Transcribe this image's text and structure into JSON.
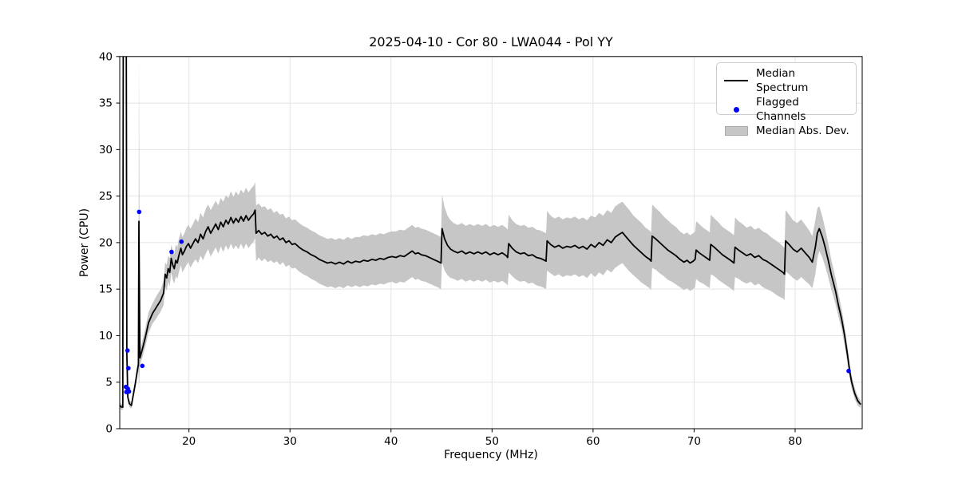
{
  "chart_data": {
    "type": "line",
    "title": "2025-04-10 - Cor 80 - LWA044 - Pol YY",
    "xlabel": "Frequency (MHz)",
    "ylabel": "Power (CPU)",
    "xlim": [
      13.15,
      86.64
    ],
    "ylim": [
      0,
      40
    ],
    "xticks": [
      20,
      30,
      40,
      50,
      60,
      70,
      80
    ],
    "yticks": [
      0,
      5,
      10,
      15,
      20,
      25,
      30,
      35,
      40
    ],
    "grid": true,
    "legend": {
      "position": "upper right",
      "entries": [
        "Median Spectrum",
        "Flagged Channels",
        "Median Abs. Dev."
      ]
    },
    "colors": {
      "median_line": "#000000",
      "flagged": "#0000ff",
      "band": "#c6c6c6",
      "grid": "#e4e4e4",
      "frame": "#000000"
    },
    "spectrum_points_format": [
      "freq_mhz",
      "median_power",
      "median_abs_dev"
    ],
    "spectrum": [
      [
        13.15,
        2.5,
        0.3
      ],
      [
        13.3,
        2.35,
        0.3
      ],
      [
        13.45,
        2.3,
        0.3
      ],
      [
        13.5,
        41,
        1
      ],
      [
        13.8,
        41,
        1
      ],
      [
        13.85,
        8,
        0.6
      ],
      [
        13.95,
        3.4,
        0.4
      ],
      [
        14.1,
        2.7,
        0.35
      ],
      [
        14.3,
        2.5,
        0.35
      ],
      [
        14.5,
        3.7,
        0.4
      ],
      [
        14.7,
        4.9,
        0.5
      ],
      [
        14.9,
        6.3,
        0.6
      ],
      [
        15.0,
        6.9,
        0.7
      ],
      [
        15.05,
        22.3,
        18
      ],
      [
        15.15,
        7.6,
        0.8
      ],
      [
        15.4,
        8.6,
        0.9
      ],
      [
        15.7,
        9.9,
        1
      ],
      [
        16.0,
        11.4,
        1.1
      ],
      [
        16.4,
        12.4,
        1.1
      ],
      [
        16.8,
        13.1,
        1.2
      ],
      [
        17.2,
        13.8,
        1.2
      ],
      [
        17.5,
        14.6,
        1.3
      ],
      [
        17.65,
        16.6,
        1.3
      ],
      [
        17.8,
        16.2,
        1.4
      ],
      [
        17.95,
        17.2,
        1.4
      ],
      [
        18.1,
        16.8,
        1.5
      ],
      [
        18.25,
        18.3,
        1.5
      ],
      [
        18.4,
        17.6,
        1.6
      ],
      [
        18.55,
        17.2,
        1.6
      ],
      [
        18.7,
        18.1,
        1.7
      ],
      [
        18.85,
        17.8,
        1.7
      ],
      [
        19.0,
        18.6,
        1.8
      ],
      [
        19.2,
        19.4,
        1.8
      ],
      [
        19.35,
        18.7,
        1.9
      ],
      [
        19.55,
        19.1,
        1.9
      ],
      [
        19.75,
        19.6,
        2
      ],
      [
        19.95,
        19.9,
        2
      ],
      [
        20.15,
        19.4,
        2.1
      ],
      [
        20.4,
        19.9,
        2.1
      ],
      [
        20.65,
        20.4,
        2.2
      ],
      [
        20.9,
        20.0,
        2.2
      ],
      [
        21.15,
        20.9,
        2.3
      ],
      [
        21.4,
        20.4,
        2.3
      ],
      [
        21.65,
        21.2,
        2.4
      ],
      [
        21.9,
        21.7,
        2.4
      ],
      [
        22.15,
        21.0,
        2.5
      ],
      [
        22.4,
        21.5,
        2.5
      ],
      [
        22.65,
        22.0,
        2.5
      ],
      [
        22.9,
        21.4,
        2.6
      ],
      [
        23.15,
        22.2,
        2.6
      ],
      [
        23.4,
        21.7,
        2.7
      ],
      [
        23.65,
        22.4,
        2.7
      ],
      [
        23.9,
        22.0,
        2.8
      ],
      [
        24.15,
        22.7,
        2.8
      ],
      [
        24.4,
        22.1,
        2.8
      ],
      [
        24.65,
        22.6,
        2.9
      ],
      [
        24.9,
        22.2,
        2.9
      ],
      [
        25.15,
        22.8,
        2.9
      ],
      [
        25.4,
        22.3,
        3
      ],
      [
        25.65,
        22.9,
        3
      ],
      [
        25.9,
        22.4,
        3
      ],
      [
        26.15,
        22.8,
        3
      ],
      [
        26.4,
        23.1,
        3
      ],
      [
        26.55,
        23.5,
        3
      ],
      [
        26.65,
        21.0,
        3
      ],
      [
        26.9,
        21.3,
        2.9
      ],
      [
        27.2,
        20.9,
        2.9
      ],
      [
        27.5,
        21.1,
        2.8
      ],
      [
        27.8,
        20.7,
        2.8
      ],
      [
        28.1,
        20.9,
        2.8
      ],
      [
        28.4,
        20.5,
        2.7
      ],
      [
        28.7,
        20.7,
        2.7
      ],
      [
        29.0,
        20.3,
        2.7
      ],
      [
        29.3,
        20.5,
        2.6
      ],
      [
        29.6,
        20.0,
        2.6
      ],
      [
        29.9,
        20.2,
        2.6
      ],
      [
        30.2,
        19.8,
        2.6
      ],
      [
        30.5,
        19.9,
        2.6
      ],
      [
        30.9,
        19.5,
        2.6
      ],
      [
        31.3,
        19.2,
        2.6
      ],
      [
        31.7,
        19.0,
        2.6
      ],
      [
        32.1,
        18.7,
        2.6
      ],
      [
        32.5,
        18.5,
        2.6
      ],
      [
        32.9,
        18.2,
        2.6
      ],
      [
        33.3,
        18.0,
        2.6
      ],
      [
        33.7,
        17.8,
        2.6
      ],
      [
        34.1,
        17.9,
        2.6
      ],
      [
        34.5,
        17.7,
        2.6
      ],
      [
        34.9,
        17.9,
        2.6
      ],
      [
        35.3,
        17.7,
        2.6
      ],
      [
        35.7,
        18.0,
        2.6
      ],
      [
        36.1,
        17.8,
        2.6
      ],
      [
        36.5,
        18.0,
        2.6
      ],
      [
        36.9,
        17.9,
        2.7
      ],
      [
        37.3,
        18.1,
        2.7
      ],
      [
        37.7,
        18.0,
        2.7
      ],
      [
        38.1,
        18.2,
        2.7
      ],
      [
        38.5,
        18.1,
        2.7
      ],
      [
        38.9,
        18.3,
        2.7
      ],
      [
        39.3,
        18.2,
        2.7
      ],
      [
        39.7,
        18.4,
        2.7
      ],
      [
        40.1,
        18.5,
        2.7
      ],
      [
        40.5,
        18.4,
        2.8
      ],
      [
        40.9,
        18.6,
        2.8
      ],
      [
        41.3,
        18.5,
        2.8
      ],
      [
        41.7,
        18.8,
        2.8
      ],
      [
        42.1,
        19.1,
        2.8
      ],
      [
        42.4,
        18.8,
        2.8
      ],
      [
        42.7,
        18.9,
        2.8
      ],
      [
        43.0,
        18.7,
        2.8
      ],
      [
        43.4,
        18.6,
        2.8
      ],
      [
        43.8,
        18.4,
        2.8
      ],
      [
        44.2,
        18.2,
        2.8
      ],
      [
        44.6,
        18.0,
        2.8
      ],
      [
        44.95,
        17.8,
        2.8
      ],
      [
        45.05,
        21.5,
        3.6
      ],
      [
        45.3,
        20.4,
        3.4
      ],
      [
        45.6,
        19.7,
        3.2
      ],
      [
        45.9,
        19.3,
        3.1
      ],
      [
        46.2,
        19.1,
        3
      ],
      [
        46.6,
        18.9,
        3
      ],
      [
        47.0,
        19.1,
        3
      ],
      [
        47.4,
        18.8,
        3
      ],
      [
        47.8,
        19.0,
        3
      ],
      [
        48.2,
        18.8,
        3
      ],
      [
        48.6,
        19.0,
        3
      ],
      [
        49.0,
        18.8,
        3
      ],
      [
        49.4,
        19.0,
        3
      ],
      [
        49.8,
        18.7,
        3
      ],
      [
        50.2,
        18.9,
        3
      ],
      [
        50.6,
        18.7,
        3
      ],
      [
        51.0,
        18.9,
        3
      ],
      [
        51.4,
        18.6,
        3
      ],
      [
        51.55,
        18.4,
        3
      ],
      [
        51.65,
        19.9,
        3.1
      ],
      [
        52.0,
        19.4,
        3
      ],
      [
        52.4,
        19.0,
        3
      ],
      [
        52.8,
        18.8,
        3
      ],
      [
        53.2,
        18.9,
        3
      ],
      [
        53.6,
        18.6,
        3
      ],
      [
        54.0,
        18.7,
        3
      ],
      [
        54.4,
        18.4,
        3
      ],
      [
        54.8,
        18.3,
        3
      ],
      [
        55.2,
        18.1,
        3
      ],
      [
        55.35,
        18.0,
        3
      ],
      [
        55.45,
        20.2,
        3.2
      ],
      [
        55.8,
        19.8,
        3.1
      ],
      [
        56.2,
        19.5,
        3.1
      ],
      [
        56.6,
        19.7,
        3.1
      ],
      [
        57.0,
        19.4,
        3.1
      ],
      [
        57.4,
        19.6,
        3.1
      ],
      [
        57.8,
        19.5,
        3.1
      ],
      [
        58.2,
        19.7,
        3.1
      ],
      [
        58.6,
        19.4,
        3.1
      ],
      [
        59.0,
        19.6,
        3.1
      ],
      [
        59.4,
        19.3,
        3.1
      ],
      [
        59.8,
        19.8,
        3.1
      ],
      [
        60.2,
        19.5,
        3.2
      ],
      [
        60.6,
        20.0,
        3.2
      ],
      [
        61.0,
        19.7,
        3.2
      ],
      [
        61.4,
        20.3,
        3.2
      ],
      [
        61.8,
        20.0,
        3.2
      ],
      [
        62.2,
        20.6,
        3.3
      ],
      [
        62.6,
        20.9,
        3.3
      ],
      [
        62.9,
        21.1,
        3.3
      ],
      [
        63.2,
        20.7,
        3.3
      ],
      [
        63.6,
        20.2,
        3.3
      ],
      [
        64.0,
        19.7,
        3.2
      ],
      [
        64.4,
        19.3,
        3.2
      ],
      [
        64.8,
        18.9,
        3.2
      ],
      [
        65.2,
        18.5,
        3.1
      ],
      [
        65.6,
        18.2,
        3.1
      ],
      [
        65.75,
        18.0,
        3.1
      ],
      [
        65.85,
        20.7,
        3.4
      ],
      [
        66.2,
        20.4,
        3.3
      ],
      [
        66.6,
        20.0,
        3.3
      ],
      [
        67.0,
        19.6,
        3.2
      ],
      [
        67.4,
        19.2,
        3.2
      ],
      [
        67.8,
        18.9,
        3.1
      ],
      [
        68.2,
        18.6,
        3.1
      ],
      [
        68.6,
        18.2,
        3
      ],
      [
        69.0,
        17.9,
        3
      ],
      [
        69.3,
        18.1,
        3
      ],
      [
        69.6,
        17.8,
        3
      ],
      [
        69.9,
        18.0,
        3
      ],
      [
        70.1,
        18.2,
        3
      ],
      [
        70.2,
        19.2,
        3.1
      ],
      [
        70.5,
        18.9,
        3.1
      ],
      [
        70.9,
        18.6,
        3
      ],
      [
        71.3,
        18.3,
        3
      ],
      [
        71.55,
        18.1,
        3
      ],
      [
        71.65,
        19.8,
        3.2
      ],
      [
        72.0,
        19.5,
        3.1
      ],
      [
        72.4,
        19.1,
        3.1
      ],
      [
        72.8,
        18.7,
        3
      ],
      [
        73.2,
        18.4,
        3
      ],
      [
        73.6,
        18.1,
        3
      ],
      [
        73.95,
        17.8,
        3
      ],
      [
        74.05,
        19.5,
        3.2
      ],
      [
        74.4,
        19.2,
        3.1
      ],
      [
        74.8,
        18.9,
        3.1
      ],
      [
        75.2,
        18.6,
        3
      ],
      [
        75.6,
        18.8,
        3
      ],
      [
        76.0,
        18.4,
        3
      ],
      [
        76.4,
        18.6,
        3
      ],
      [
        76.8,
        18.2,
        3
      ],
      [
        77.2,
        18.0,
        3
      ],
      [
        77.6,
        17.7,
        2.9
      ],
      [
        78.0,
        17.4,
        2.9
      ],
      [
        78.4,
        17.1,
        2.9
      ],
      [
        78.8,
        16.8,
        2.8
      ],
      [
        78.95,
        16.6,
        2.8
      ],
      [
        79.05,
        20.2,
        3.3
      ],
      [
        79.4,
        19.8,
        3.2
      ],
      [
        79.8,
        19.3,
        3.1
      ],
      [
        80.2,
        19.0,
        3.1
      ],
      [
        80.6,
        19.4,
        3.1
      ],
      [
        81.0,
        18.9,
        3
      ],
      [
        81.4,
        18.4,
        2.9
      ],
      [
        81.7,
        17.9,
        2.8
      ],
      [
        82.0,
        19.5,
        2.9
      ],
      [
        82.2,
        21.0,
        2.7
      ],
      [
        82.4,
        21.5,
        2.4
      ],
      [
        82.7,
        20.6,
        2.2
      ],
      [
        83.0,
        19.4,
        2
      ],
      [
        83.3,
        18.0,
        1.8
      ],
      [
        83.6,
        16.5,
        1.6
      ],
      [
        84.0,
        14.8,
        1.4
      ],
      [
        84.3,
        13.2,
        1.2
      ],
      [
        84.6,
        11.8,
        1.1
      ],
      [
        84.9,
        10.0,
        1
      ],
      [
        85.2,
        7.8,
        0.9
      ],
      [
        85.4,
        6.2,
        0.8
      ],
      [
        85.6,
        5.0,
        0.7
      ],
      [
        85.9,
        3.8,
        0.6
      ],
      [
        86.2,
        3.0,
        0.5
      ],
      [
        86.5,
        2.6,
        0.4
      ]
    ],
    "flagged_channels_format": [
      "freq_mhz",
      "power"
    ],
    "flagged_channels": [
      [
        13.76,
        4.5
      ],
      [
        13.8,
        3.95
      ],
      [
        13.92,
        8.4
      ],
      [
        13.95,
        4.3
      ],
      [
        14.0,
        6.5
      ],
      [
        14.07,
        4.0
      ],
      [
        15.07,
        23.3
      ],
      [
        15.39,
        6.75
      ],
      [
        18.28,
        19.0
      ],
      [
        19.26,
        20.1
      ],
      [
        85.3,
        6.2
      ]
    ]
  }
}
